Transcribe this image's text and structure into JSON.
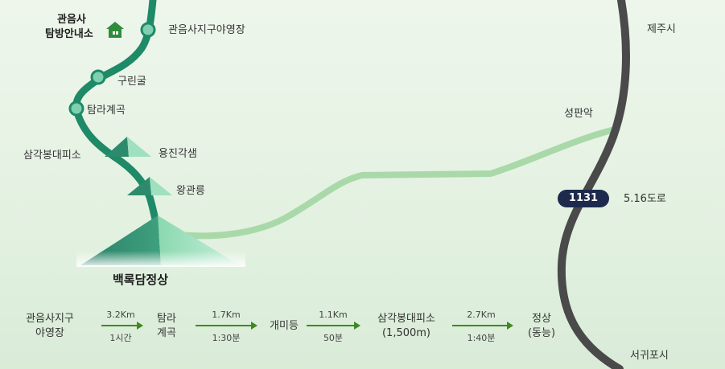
{
  "places": {
    "visitor_center_line1": "관음사",
    "visitor_center_line2": "탐방안내소",
    "campground": "관음사지구야영장",
    "gurigul": "구린굴",
    "tamra_valley": "탐라계곡",
    "samgak_shelter": "삼각봉대피소",
    "yongjin": "용진각샘",
    "wanggwan": "왕관릉",
    "summit": "백록담정상",
    "seongpanak": "성판악",
    "jeju_city": "제주시",
    "seogwipo_city": "서귀포시"
  },
  "road": {
    "number": "1131",
    "name": "5.16도로"
  },
  "course": {
    "steps": [
      {
        "line1": "관음사지구",
        "line2": "야영장"
      },
      {
        "line1": "탐라",
        "line2": "계곡"
      },
      {
        "line1": "개미등",
        "line2": ""
      },
      {
        "line1": "삼각봉대피소",
        "line2": "(1,500m)"
      },
      {
        "line1": "정상",
        "line2": "(동능)"
      }
    ],
    "legs": [
      {
        "distance": "3.2Km",
        "time": "1시간"
      },
      {
        "distance": "1.7Km",
        "time": "1:30분"
      },
      {
        "distance": "1.1Km",
        "time": "50분"
      },
      {
        "distance": "2.7Km",
        "time": "1:40분"
      }
    ]
  },
  "colors": {
    "trail": "#1e8a67",
    "trail_node": "#7fd0b0",
    "seongpanak_trail": "#a9d9a8",
    "road": "#4a4a4a",
    "road_badge": "#1d2a4d",
    "arrow": "#3f8a1f"
  },
  "icons": {
    "visitor_center": "house-icon"
  }
}
